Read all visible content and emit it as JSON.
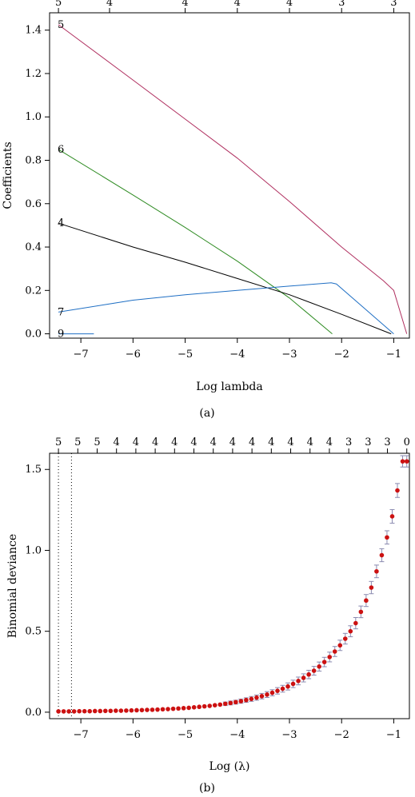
{
  "chart_data": [
    {
      "panel": "a",
      "type": "line",
      "xlabel": "Log lambda",
      "ylabel": "Coefficients",
      "caption": "(a)",
      "xlim": [
        -7.6,
        -0.7
      ],
      "ylim": [
        -0.02,
        1.48
      ],
      "x_ticks": [
        -7,
        -6,
        -5,
        -4,
        -3,
        -2,
        -1
      ],
      "y_ticks": [
        0.0,
        0.2,
        0.4,
        0.6,
        0.8,
        1.0,
        1.2,
        1.4
      ],
      "y_tick_labels": [
        "0.0",
        "0.2",
        "0.4",
        "0.6",
        "0.8",
        "1.0",
        "1.2",
        "1.4"
      ],
      "top_ticks": [
        {
          "x": -7.43,
          "label": "5"
        },
        {
          "x": -6.45,
          "label": "4"
        },
        {
          "x": -5.0,
          "label": "4"
        },
        {
          "x": -4.0,
          "label": "4"
        },
        {
          "x": -3.0,
          "label": "4"
        },
        {
          "x": -2.0,
          "label": "3"
        },
        {
          "x": -1.0,
          "label": "3"
        }
      ],
      "grid": false,
      "series": [
        {
          "name": "5",
          "color": "#b03060",
          "x": [
            -7.43,
            -6.0,
            -5.0,
            -4.0,
            -3.0,
            -2.0,
            -1.2,
            -1.0,
            -0.75
          ],
          "y": [
            1.425,
            1.17,
            0.99,
            0.81,
            0.61,
            0.4,
            0.245,
            0.2,
            0.0
          ]
        },
        {
          "name": "6",
          "color": "#2e8b22",
          "x": [
            -7.43,
            -6.0,
            -5.0,
            -4.0,
            -3.0,
            -2.18
          ],
          "y": [
            0.85,
            0.64,
            0.49,
            0.335,
            0.165,
            0.0
          ]
        },
        {
          "name": "4",
          "color": "#000000",
          "x": [
            -7.43,
            -6.0,
            -5.0,
            -4.0,
            -3.0,
            -2.0,
            -1.05
          ],
          "y": [
            0.51,
            0.4,
            0.33,
            0.255,
            0.18,
            0.09,
            0.0
          ]
        },
        {
          "name": "7",
          "color": "#1f6fc4",
          "x": [
            -7.43,
            -6.0,
            -5.0,
            -4.0,
            -3.0,
            -2.2,
            -2.1,
            -1.0
          ],
          "y": [
            0.1,
            0.155,
            0.18,
            0.2,
            0.22,
            0.235,
            0.23,
            0.0
          ]
        },
        {
          "name": "9",
          "color": "#1f6fc4",
          "x": [
            -7.43,
            -6.75
          ],
          "y": [
            0.0,
            0.0
          ]
        }
      ]
    },
    {
      "panel": "b",
      "type": "scatter",
      "xlabel": "Log (λ)",
      "ylabel": "Binomial deviance",
      "caption": "(b)",
      "xlim": [
        -7.6,
        -0.7
      ],
      "ylim": [
        -0.04,
        1.6
      ],
      "x_ticks": [
        -7,
        -6,
        -5,
        -4,
        -3,
        -2,
        -1
      ],
      "y_ticks": [
        0.0,
        0.5,
        1.0,
        1.5
      ],
      "y_tick_labels": [
        "0.0",
        "0.5",
        "1.0",
        "1.5"
      ],
      "top_tick_labels": [
        "5",
        "5",
        "5",
        "4",
        "4",
        "4",
        "4",
        "4",
        "4",
        "4",
        "4",
        "4",
        "4",
        "4",
        "4",
        "3",
        "3",
        "3",
        "0"
      ],
      "top_tick_range": [
        -7.43,
        -0.75
      ],
      "vlines": [
        -7.43,
        -7.18
      ],
      "point_color": "#cc1111",
      "errorbar_color": "#8a8ab0",
      "grid": false,
      "x": [
        -7.43,
        -7.33,
        -7.23,
        -7.13,
        -7.03,
        -6.93,
        -6.83,
        -6.73,
        -6.63,
        -6.53,
        -6.43,
        -6.33,
        -6.23,
        -6.13,
        -6.03,
        -5.93,
        -5.83,
        -5.73,
        -5.63,
        -5.53,
        -5.43,
        -5.33,
        -5.23,
        -5.13,
        -5.03,
        -4.93,
        -4.83,
        -4.73,
        -4.63,
        -4.53,
        -4.43,
        -4.33,
        -4.23,
        -4.13,
        -4.03,
        -3.93,
        -3.83,
        -3.73,
        -3.63,
        -3.53,
        -3.43,
        -3.33,
        -3.23,
        -3.13,
        -3.03,
        -2.93,
        -2.83,
        -2.73,
        -2.63,
        -2.53,
        -2.43,
        -2.33,
        -2.23,
        -2.13,
        -2.03,
        -1.93,
        -1.83,
        -1.73,
        -1.63,
        -1.53,
        -1.43,
        -1.33,
        -1.23,
        -1.13,
        -1.03,
        -0.93,
        -0.83,
        -0.75
      ],
      "y": [
        0.005,
        0.005,
        0.005,
        0.005,
        0.006,
        0.006,
        0.006,
        0.007,
        0.007,
        0.008,
        0.008,
        0.009,
        0.009,
        0.01,
        0.011,
        0.012,
        0.013,
        0.014,
        0.015,
        0.016,
        0.018,
        0.019,
        0.021,
        0.023,
        0.025,
        0.027,
        0.03,
        0.033,
        0.036,
        0.039,
        0.043,
        0.047,
        0.052,
        0.057,
        0.062,
        0.068,
        0.075,
        0.082,
        0.09,
        0.099,
        0.109,
        0.12,
        0.132,
        0.145,
        0.159,
        0.175,
        0.193,
        0.212,
        0.233,
        0.256,
        0.282,
        0.31,
        0.341,
        0.375,
        0.413,
        0.454,
        0.5,
        0.55,
        0.62,
        0.69,
        0.77,
        0.87,
        0.97,
        1.08,
        1.21,
        1.37,
        1.55,
        1.55
      ],
      "err": [
        0.005,
        0.005,
        0.005,
        0.005,
        0.005,
        0.005,
        0.005,
        0.005,
        0.005,
        0.005,
        0.005,
        0.005,
        0.005,
        0.005,
        0.005,
        0.005,
        0.005,
        0.005,
        0.006,
        0.006,
        0.006,
        0.006,
        0.006,
        0.007,
        0.007,
        0.007,
        0.008,
        0.008,
        0.009,
        0.009,
        0.01,
        0.01,
        0.011,
        0.012,
        0.012,
        0.013,
        0.014,
        0.015,
        0.016,
        0.017,
        0.018,
        0.019,
        0.02,
        0.021,
        0.022,
        0.023,
        0.024,
        0.025,
        0.026,
        0.027,
        0.028,
        0.029,
        0.03,
        0.031,
        0.032,
        0.033,
        0.034,
        0.035,
        0.036,
        0.037,
        0.038,
        0.039,
        0.04,
        0.041,
        0.042,
        0.043,
        0.035,
        0.035
      ]
    }
  ]
}
